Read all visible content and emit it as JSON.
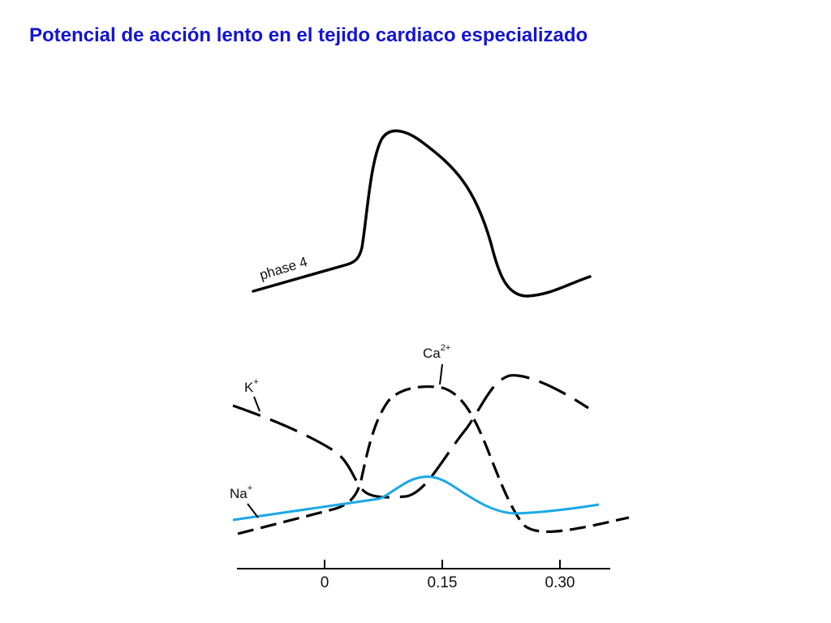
{
  "title": "Potencial de acción lento en el tejido cardiaco especializado",
  "action_potential": {
    "phase_label": "phase 4"
  },
  "ion_currents": {
    "ca": {
      "base": "Ca",
      "sup": "2+",
      "line": "dashed",
      "color": "#000000"
    },
    "k": {
      "base": "K",
      "sup": "+",
      "line": "long-dashed",
      "color": "#000000"
    },
    "na": {
      "base": "Na",
      "sup": "+",
      "line": "solid",
      "color": "#1aa8e6"
    }
  },
  "time_axis": {
    "ticks": [
      "0",
      "0.15",
      "0.30"
    ]
  },
  "colors": {
    "title": "#1414d2",
    "ink": "#000000",
    "na_curve": "#1aa8e6"
  }
}
